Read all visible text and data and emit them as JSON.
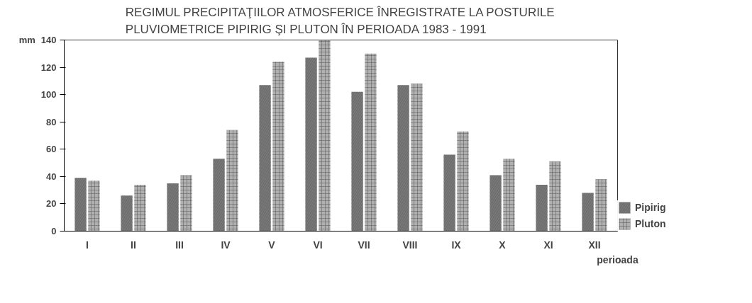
{
  "chart_data": {
    "type": "bar",
    "title": "REGIMUL PRECIPITAŢIILOR ATMOSFERICE ÎNREGISTRATE LA POSTURILE\nPLUVIOMETRICE PIPIRIG ŞI PLUTON ÎN PERIOADA 1983 - 1991",
    "xlabel": "perioada",
    "ylabel": "mm",
    "categories": [
      "I",
      "II",
      "III",
      "IV",
      "V",
      "VI",
      "VII",
      "VIII",
      "IX",
      "X",
      "XI",
      "XII"
    ],
    "series": [
      {
        "name": "Pipirig",
        "color": "#7a7a7a",
        "values": [
          39,
          26,
          35,
          53,
          107,
          127,
          102,
          107,
          56,
          41,
          34,
          28
        ]
      },
      {
        "name": "Pluton",
        "color": "#b0b0b0",
        "values": [
          37,
          34,
          41,
          74,
          124,
          140,
          130,
          108,
          73,
          53,
          51,
          38
        ]
      }
    ],
    "ylim": [
      0,
      140
    ],
    "yticks": [
      0,
      20,
      40,
      60,
      80,
      100,
      120,
      140
    ],
    "legend": "right"
  }
}
